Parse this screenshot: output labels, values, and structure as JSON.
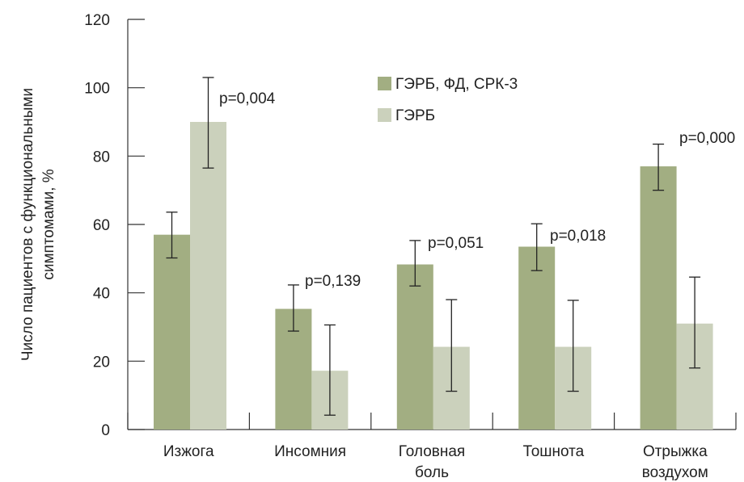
{
  "chart_data": {
    "type": "bar",
    "title": "",
    "xlabel": "",
    "ylabel": "Число пациентов с функциональными симптомами, %",
    "ylabel_lines": [
      "Число пациентов с функциональными",
      "симптомами, %"
    ],
    "ylim": [
      0,
      120
    ],
    "yticks": [
      0,
      20,
      40,
      60,
      80,
      100,
      120
    ],
    "grid": false,
    "legend_position": "top-center",
    "categories": [
      [
        "Изжога"
      ],
      [
        "Инсомния"
      ],
      [
        "Головная",
        "боль"
      ],
      [
        "Тошнота"
      ],
      [
        "Отрыжка",
        "воздухом"
      ]
    ],
    "series": [
      {
        "name": "ГЭРБ, ФД, СРК-3",
        "color": "#a2ae82",
        "values": [
          57,
          35.3,
          48.3,
          53.5,
          77
        ],
        "error_low": [
          50.2,
          28.8,
          42,
          46.5,
          70
        ],
        "error_high": [
          63.6,
          42.3,
          55.3,
          60.2,
          83.5
        ]
      },
      {
        "name": "ГЭРБ",
        "color": "#cbd1bc",
        "values": [
          90,
          17.2,
          24.2,
          24.2,
          31
        ],
        "error_low": [
          76.5,
          4.2,
          11.2,
          11.2,
          18
        ],
        "error_high": [
          103,
          30.6,
          38,
          37.8,
          44.6
        ]
      }
    ],
    "annotations": [
      "p=0,004",
      "p=0,139",
      "p=0,051",
      "p=0,018",
      "p=0,000"
    ]
  }
}
